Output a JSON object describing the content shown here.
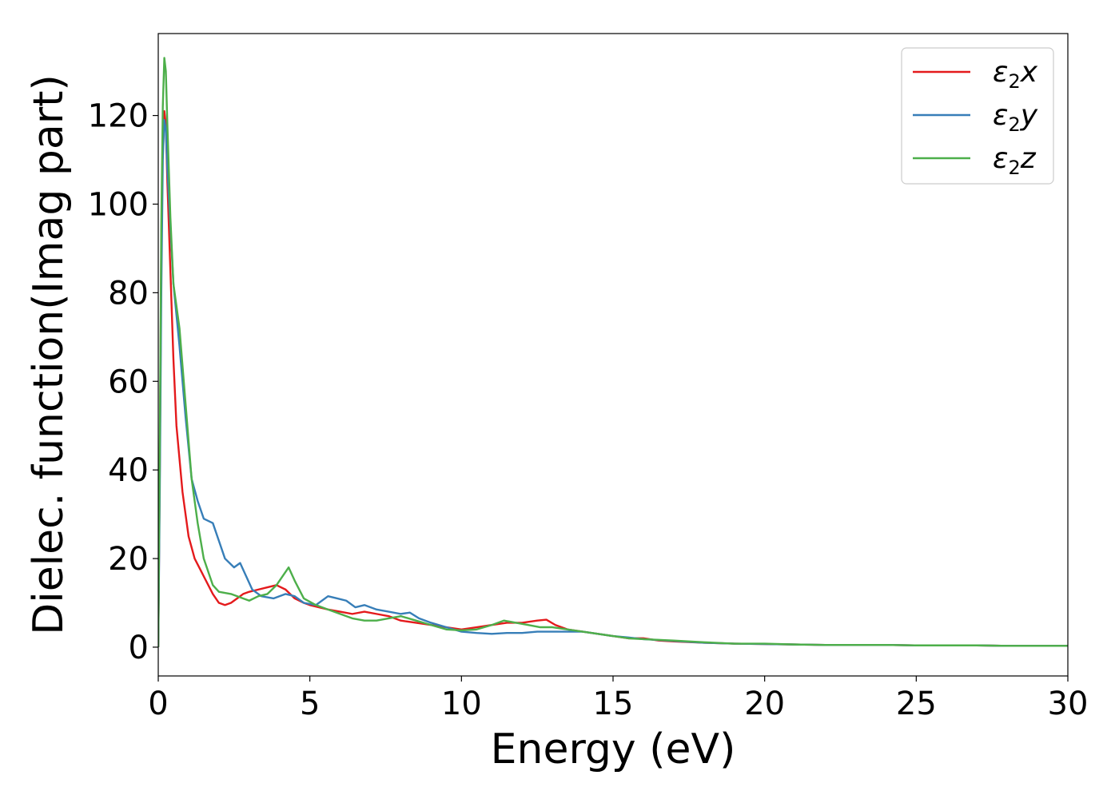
{
  "chart_data": {
    "type": "line",
    "xlabel": "Energy (eV)",
    "ylabel": "Dielec. function(Imag part)",
    "xlim": [
      0,
      30
    ],
    "ylim": [
      -6.5,
      138.5
    ],
    "xticks": [
      0,
      5,
      10,
      15,
      20,
      25,
      30
    ],
    "yticks": [
      0,
      20,
      40,
      60,
      80,
      100,
      120
    ],
    "grid": false,
    "legend_position": "top-right",
    "series": [
      {
        "name": "ε2x",
        "legend": {
          "base": "ε",
          "sub": "2",
          "suffix": "x"
        },
        "color": "#e41a1c",
        "points": [
          [
            0,
            0
          ],
          [
            0.05,
            40
          ],
          [
            0.1,
            90
          ],
          [
            0.15,
            115
          ],
          [
            0.2,
            121
          ],
          [
            0.25,
            118
          ],
          [
            0.3,
            105
          ],
          [
            0.4,
            85
          ],
          [
            0.5,
            65
          ],
          [
            0.6,
            50
          ],
          [
            0.8,
            35
          ],
          [
            1.0,
            25
          ],
          [
            1.2,
            20
          ],
          [
            1.5,
            16
          ],
          [
            1.8,
            12
          ],
          [
            2.0,
            10
          ],
          [
            2.2,
            9.5
          ],
          [
            2.4,
            10
          ],
          [
            2.6,
            11
          ],
          [
            2.8,
            12
          ],
          [
            3.0,
            12.5
          ],
          [
            3.3,
            13
          ],
          [
            3.6,
            13.5
          ],
          [
            3.9,
            14
          ],
          [
            4.2,
            13
          ],
          [
            4.5,
            11
          ],
          [
            4.8,
            10
          ],
          [
            5.0,
            9.5
          ],
          [
            5.3,
            9
          ],
          [
            5.6,
            8.5
          ],
          [
            6.0,
            8
          ],
          [
            6.4,
            7.5
          ],
          [
            6.8,
            8
          ],
          [
            7.2,
            7.5
          ],
          [
            7.6,
            7
          ],
          [
            8.0,
            6
          ],
          [
            8.5,
            5.5
          ],
          [
            9.0,
            5
          ],
          [
            9.5,
            4.5
          ],
          [
            10.0,
            4
          ],
          [
            10.5,
            4.5
          ],
          [
            11.0,
            5
          ],
          [
            11.5,
            5.5
          ],
          [
            12.0,
            5.5
          ],
          [
            12.5,
            6
          ],
          [
            12.8,
            6.2
          ],
          [
            13.1,
            5
          ],
          [
            13.5,
            4
          ],
          [
            14.0,
            3.5
          ],
          [
            14.5,
            3
          ],
          [
            15.0,
            2.5
          ],
          [
            15.5,
            2
          ],
          [
            16.0,
            2
          ],
          [
            16.5,
            1.5
          ],
          [
            17.0,
            1.3
          ],
          [
            18.0,
            1
          ],
          [
            19.0,
            0.8
          ],
          [
            20.0,
            0.7
          ],
          [
            21.0,
            0.6
          ],
          [
            22.0,
            0.5
          ],
          [
            23.0,
            0.5
          ],
          [
            24.0,
            0.5
          ],
          [
            25.0,
            0.4
          ],
          [
            26.0,
            0.4
          ],
          [
            27.0,
            0.4
          ],
          [
            28.0,
            0.3
          ],
          [
            29.0,
            0.3
          ],
          [
            30.0,
            0.3
          ]
        ]
      },
      {
        "name": "ε2y",
        "legend": {
          "base": "ε",
          "sub": "2",
          "suffix": "y"
        },
        "color": "#377eb8",
        "points": [
          [
            0,
            0
          ],
          [
            0.05,
            35
          ],
          [
            0.1,
            80
          ],
          [
            0.15,
            110
          ],
          [
            0.2,
            119
          ],
          [
            0.25,
            117
          ],
          [
            0.3,
            108
          ],
          [
            0.4,
            95
          ],
          [
            0.5,
            82
          ],
          [
            0.7,
            68
          ],
          [
            0.9,
            52
          ],
          [
            1.1,
            38
          ],
          [
            1.3,
            33
          ],
          [
            1.5,
            29
          ],
          [
            1.8,
            28
          ],
          [
            2.0,
            24
          ],
          [
            2.2,
            20
          ],
          [
            2.5,
            18
          ],
          [
            2.7,
            19
          ],
          [
            2.9,
            16
          ],
          [
            3.1,
            13
          ],
          [
            3.4,
            11.5
          ],
          [
            3.8,
            11
          ],
          [
            4.2,
            12
          ],
          [
            4.5,
            11.5
          ],
          [
            4.8,
            10
          ],
          [
            5.2,
            9.5
          ],
          [
            5.6,
            11.5
          ],
          [
            5.9,
            11
          ],
          [
            6.2,
            10.5
          ],
          [
            6.5,
            9
          ],
          [
            6.8,
            9.5
          ],
          [
            7.2,
            8.5
          ],
          [
            7.6,
            8
          ],
          [
            8.0,
            7.5
          ],
          [
            8.3,
            7.8
          ],
          [
            8.6,
            6.5
          ],
          [
            9.0,
            5.5
          ],
          [
            9.5,
            4.5
          ],
          [
            10.0,
            3.5
          ],
          [
            10.5,
            3.2
          ],
          [
            11.0,
            3
          ],
          [
            11.5,
            3.2
          ],
          [
            12.0,
            3.2
          ],
          [
            12.5,
            3.5
          ],
          [
            13.0,
            3.5
          ],
          [
            13.5,
            3.5
          ],
          [
            14.0,
            3.5
          ],
          [
            14.5,
            3
          ],
          [
            15.0,
            2.5
          ],
          [
            15.5,
            2.2
          ],
          [
            16.0,
            1.8
          ],
          [
            17.0,
            1.4
          ],
          [
            18.0,
            1
          ],
          [
            19.0,
            0.8
          ],
          [
            20.0,
            0.7
          ],
          [
            21.0,
            0.6
          ],
          [
            22.0,
            0.5
          ],
          [
            23.0,
            0.5
          ],
          [
            24.0,
            0.5
          ],
          [
            25.0,
            0.4
          ],
          [
            26.0,
            0.4
          ],
          [
            27.0,
            0.4
          ],
          [
            28.0,
            0.3
          ],
          [
            29.0,
            0.3
          ],
          [
            30.0,
            0.3
          ]
        ]
      },
      {
        "name": "ε2z",
        "legend": {
          "base": "ε",
          "sub": "2",
          "suffix": "z"
        },
        "color": "#4daf4a",
        "points": [
          [
            0,
            0
          ],
          [
            0.05,
            45
          ],
          [
            0.1,
            95
          ],
          [
            0.15,
            122
          ],
          [
            0.2,
            133
          ],
          [
            0.25,
            130
          ],
          [
            0.3,
            118
          ],
          [
            0.4,
            97
          ],
          [
            0.5,
            82
          ],
          [
            0.7,
            72
          ],
          [
            0.9,
            55
          ],
          [
            1.1,
            38
          ],
          [
            1.3,
            28
          ],
          [
            1.5,
            20
          ],
          [
            1.8,
            14
          ],
          [
            2.0,
            12.5
          ],
          [
            2.4,
            12
          ],
          [
            2.8,
            11
          ],
          [
            3.0,
            10.5
          ],
          [
            3.3,
            11.5
          ],
          [
            3.6,
            12
          ],
          [
            3.9,
            14
          ],
          [
            4.2,
            17
          ],
          [
            4.3,
            18
          ],
          [
            4.5,
            15
          ],
          [
            4.8,
            11
          ],
          [
            5.2,
            9.5
          ],
          [
            5.6,
            8.5
          ],
          [
            6.0,
            7.5
          ],
          [
            6.4,
            6.5
          ],
          [
            6.8,
            6
          ],
          [
            7.2,
            6
          ],
          [
            7.6,
            6.5
          ],
          [
            8.0,
            7
          ],
          [
            8.5,
            6
          ],
          [
            9.0,
            5
          ],
          [
            9.5,
            4
          ],
          [
            10.0,
            3.8
          ],
          [
            10.5,
            4
          ],
          [
            11.0,
            5
          ],
          [
            11.4,
            6
          ],
          [
            11.8,
            5.5
          ],
          [
            12.2,
            5
          ],
          [
            12.6,
            4.5
          ],
          [
            13.0,
            4.5
          ],
          [
            13.5,
            4
          ],
          [
            14.0,
            3.5
          ],
          [
            14.5,
            3
          ],
          [
            15.0,
            2.5
          ],
          [
            15.5,
            2
          ],
          [
            16.0,
            1.8
          ],
          [
            17.0,
            1.5
          ],
          [
            18.0,
            1.1
          ],
          [
            19.0,
            0.8
          ],
          [
            20.0,
            0.8
          ],
          [
            21.0,
            0.6
          ],
          [
            22.0,
            0.5
          ],
          [
            23.0,
            0.5
          ],
          [
            24.0,
            0.5
          ],
          [
            25.0,
            0.4
          ],
          [
            26.0,
            0.4
          ],
          [
            27.0,
            0.4
          ],
          [
            28.0,
            0.3
          ],
          [
            29.0,
            0.3
          ],
          [
            30.0,
            0.3
          ]
        ]
      }
    ]
  }
}
